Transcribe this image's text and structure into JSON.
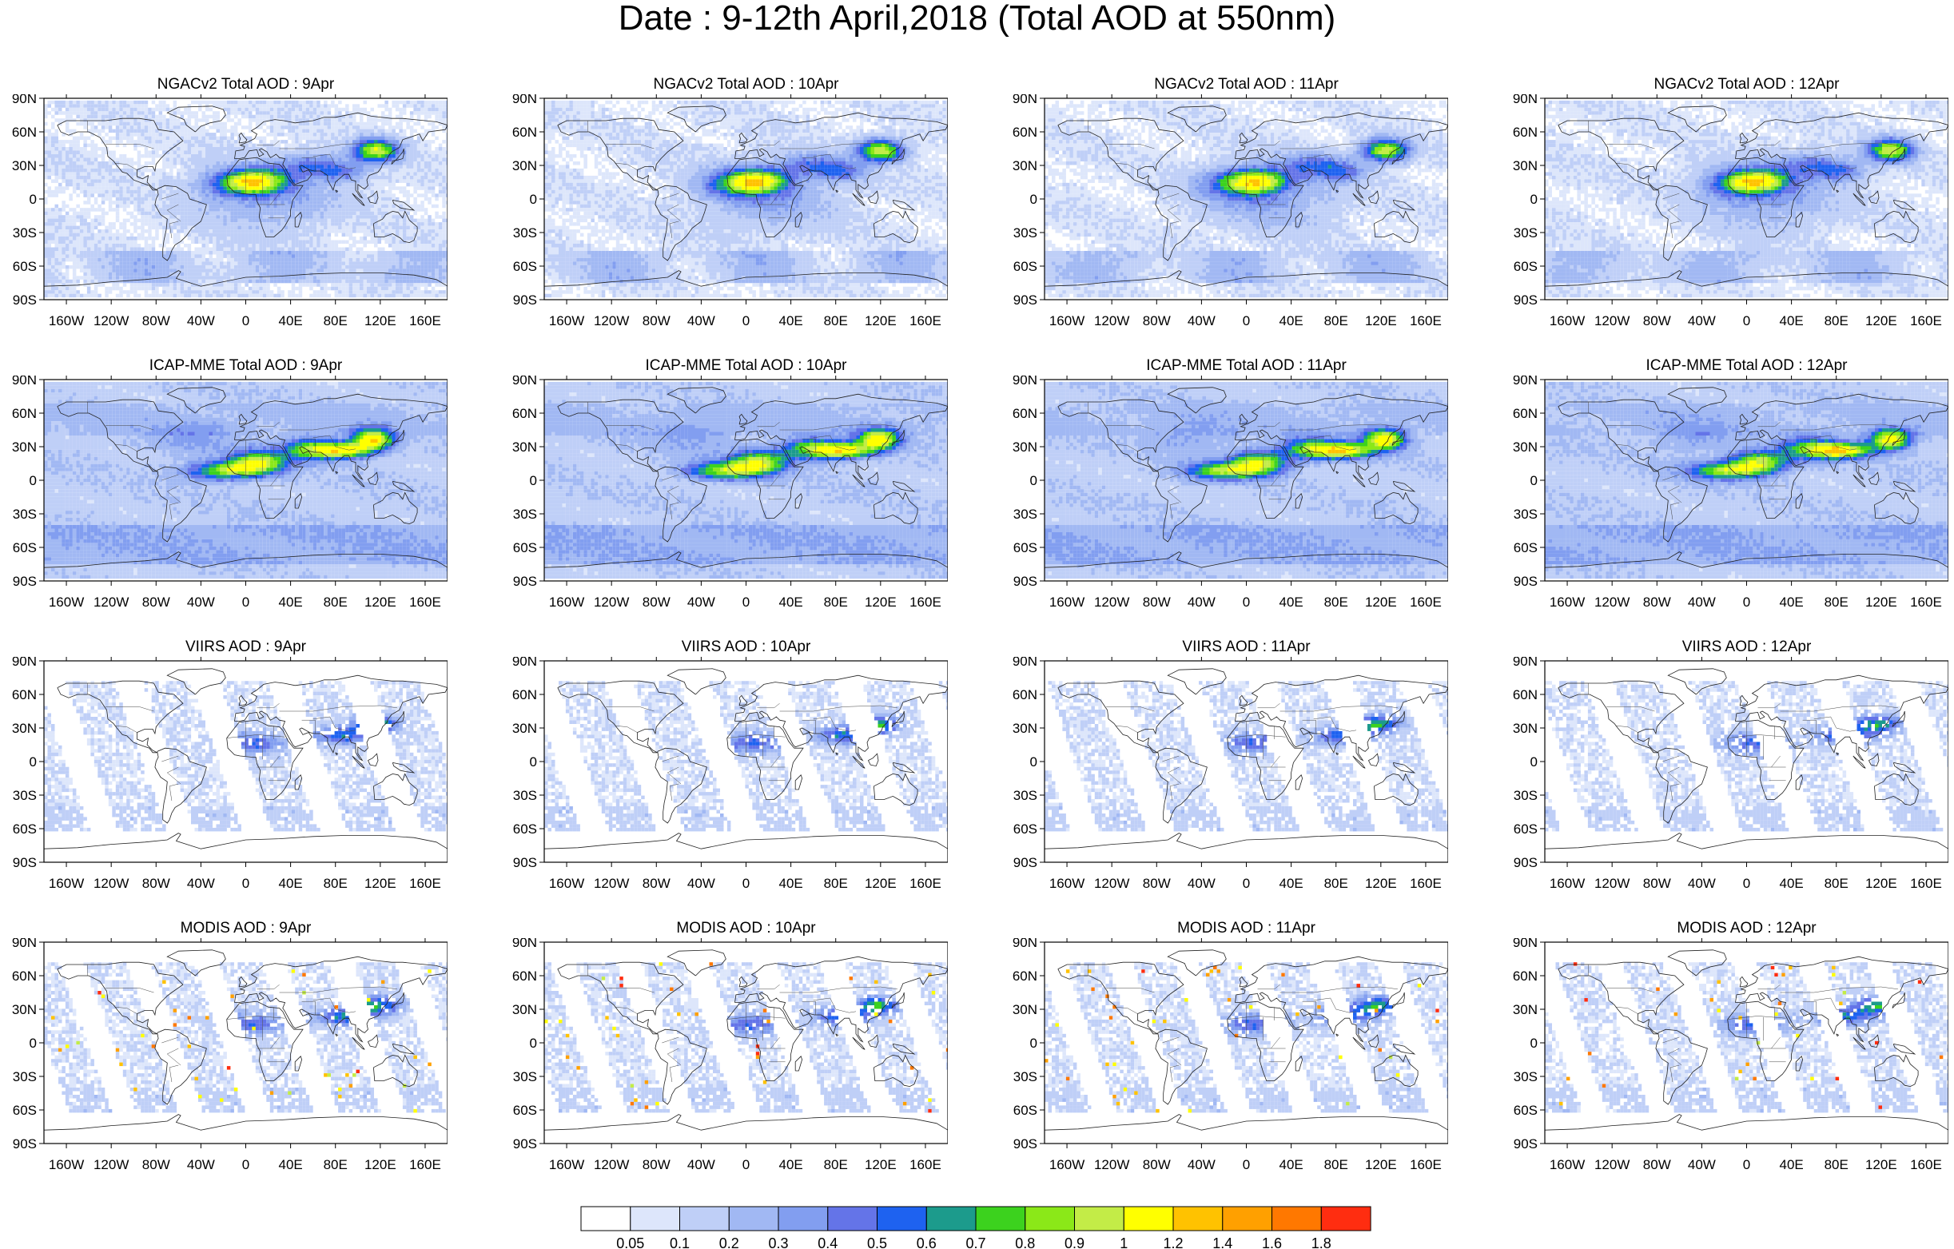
{
  "title": "Date : 9-12th April,2018 (Total AOD at 550nm)",
  "lat_ticks": [
    "90N",
    "60N",
    "30N",
    "0",
    "30S",
    "60S",
    "90S"
  ],
  "lon_ticks": [
    "160W",
    "120W",
    "80W",
    "40W",
    "0",
    "40E",
    "80E",
    "120E",
    "160E"
  ],
  "panels": [
    {
      "title": "NGACv2 Total AOD : 9Apr",
      "product": "NGACv2",
      "date": "9Apr"
    },
    {
      "title": "NGACv2 Total AOD : 10Apr",
      "product": "NGACv2",
      "date": "10Apr"
    },
    {
      "title": "NGACv2 Total AOD : 11Apr",
      "product": "NGACv2",
      "date": "11Apr"
    },
    {
      "title": "NGACv2 Total AOD : 12Apr",
      "product": "NGACv2",
      "date": "12Apr"
    },
    {
      "title": "ICAP-MME Total AOD : 9Apr",
      "product": "ICAP-MME",
      "date": "9Apr"
    },
    {
      "title": "ICAP-MME Total AOD : 10Apr",
      "product": "ICAP-MME",
      "date": "10Apr"
    },
    {
      "title": "ICAP-MME Total AOD : 11Apr",
      "product": "ICAP-MME",
      "date": "11Apr"
    },
    {
      "title": "ICAP-MME Total AOD : 12Apr",
      "product": "ICAP-MME",
      "date": "12Apr"
    },
    {
      "title": "VIIRS AOD : 9Apr",
      "product": "VIIRS",
      "date": "9Apr"
    },
    {
      "title": "VIIRS AOD : 10Apr",
      "product": "VIIRS",
      "date": "10Apr"
    },
    {
      "title": "VIIRS AOD : 11Apr",
      "product": "VIIRS",
      "date": "11Apr"
    },
    {
      "title": "VIIRS AOD : 12Apr",
      "product": "VIIRS",
      "date": "12Apr"
    },
    {
      "title": "MODIS AOD : 9Apr",
      "product": "MODIS",
      "date": "9Apr"
    },
    {
      "title": "MODIS AOD : 10Apr",
      "product": "MODIS",
      "date": "10Apr"
    },
    {
      "title": "MODIS AOD : 11Apr",
      "product": "MODIS",
      "date": "11Apr"
    },
    {
      "title": "MODIS AOD : 12Apr",
      "product": "MODIS",
      "date": "12Apr"
    }
  ],
  "colorbar": {
    "labels": [
      "0.05",
      "0.1",
      "0.2",
      "0.3",
      "0.4",
      "0.5",
      "0.6",
      "0.7",
      "0.8",
      "0.9",
      "1",
      "1.2",
      "1.4",
      "1.6",
      "1.8"
    ],
    "colors": [
      "#ffffff",
      "#dde6fb",
      "#bfcff7",
      "#a1b8f3",
      "#829ef0",
      "#6474e8",
      "#1e62f0",
      "#1c9b8c",
      "#3cd21e",
      "#8be818",
      "#c3ec47",
      "#ffff00",
      "#ffc200",
      "#ffa000",
      "#ff7800",
      "#ff2d10"
    ]
  }
}
